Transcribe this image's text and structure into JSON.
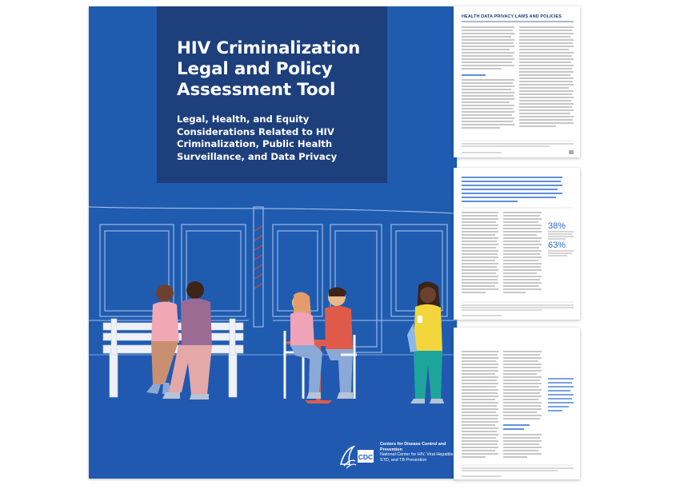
{
  "cover": {
    "title": "HIV Criminalization Legal and Policy Assessment Tool",
    "subtitle": "Legal, Health, and Equity Considerations Related to HIV Criminalization, Public Health Surveillance, and Data Privacy",
    "agency_name": "Centers for Disease Control and Prevention",
    "center_name": "National Center for HIV, Viral Hepatitis, STD, and TB Prevention",
    "logo_text": "CDC"
  },
  "thumbnails": [
    {
      "heading": "HEALTH DATA PRIVACY LAWS AND POLICIES"
    },
    {
      "stat1": "38%",
      "stat2": "63%"
    },
    {}
  ],
  "colors": {
    "cover_blue": "#1f5cb0",
    "title_box_navy": "#1d3f7c",
    "accent_blue": "#2a6ad1"
  }
}
